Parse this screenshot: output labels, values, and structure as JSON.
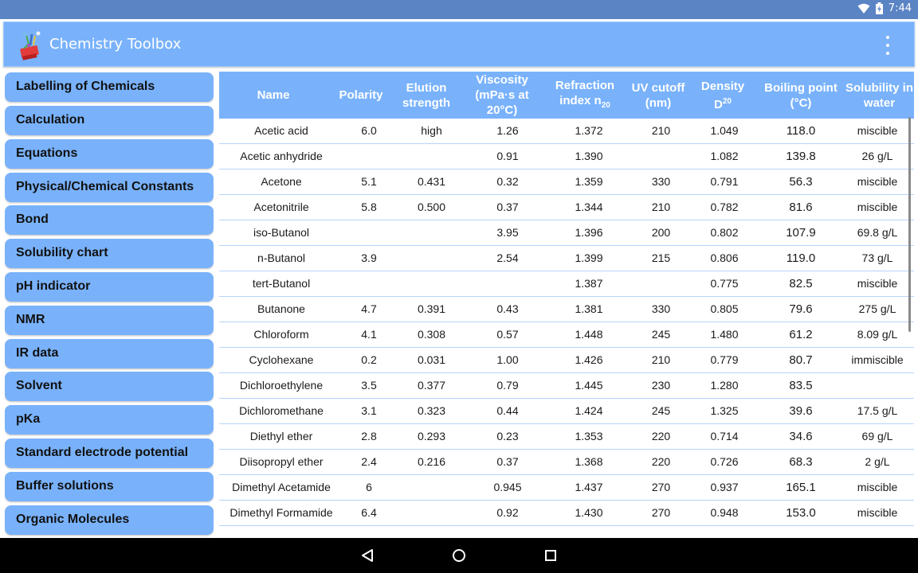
{
  "status_bar": {
    "time": "7:44",
    "icons": [
      "wifi-icon",
      "battery-charging-icon"
    ]
  },
  "app_bar": {
    "title": "Chemistry Toolbox",
    "menu_icon": "overflow-menu-icon",
    "logo_icon": "chemistry-flask-logo-icon"
  },
  "sidebar": {
    "items": [
      {
        "label": "Labelling of Chemicals"
      },
      {
        "label": "Calculation"
      },
      {
        "label": "Equations"
      },
      {
        "label": "Physical/Chemical Constants"
      },
      {
        "label": "Bond"
      },
      {
        "label": "Solubility chart"
      },
      {
        "label": "pH indicator"
      },
      {
        "label": "NMR"
      },
      {
        "label": "IR data"
      },
      {
        "label": "Solvent"
      },
      {
        "label": "pKa"
      },
      {
        "label": "Standard electrode potential"
      },
      {
        "label": "Buffer solutions"
      },
      {
        "label": "Organic Molecules"
      }
    ]
  },
  "table": {
    "headers": {
      "name": "Name",
      "polarity": "Polarity",
      "elution_1": "Elution",
      "elution_2": "strength",
      "viscosity_1": "Viscosity",
      "viscosity_2": "(mPa·s at",
      "viscosity_3": "20°C)",
      "refraction_1": "Refraction",
      "refraction_2": "index n",
      "refraction_sub": "20",
      "uv_1": "UV cutoff",
      "uv_2": "(nm)",
      "density_1": "Density",
      "density_2": "D",
      "density_sup": "20",
      "bp_1": "Boiling point",
      "bp_2": "(°C)",
      "sol_1": "Solubility in",
      "sol_2": "water"
    },
    "rows": [
      {
        "name": "Acetic acid",
        "polarity": "6.0",
        "elution": "high",
        "viscosity": "1.26",
        "refraction": "1.372",
        "uv": "210",
        "density": "1.049",
        "bp": "118.0",
        "solubility": "miscible"
      },
      {
        "name": "Acetic anhydride",
        "polarity": "",
        "elution": "",
        "viscosity": "0.91",
        "refraction": "1.390",
        "uv": "",
        "density": "1.082",
        "bp": "139.8",
        "solubility": "26 g/L"
      },
      {
        "name": "Acetone",
        "polarity": "5.1",
        "elution": "0.431",
        "viscosity": "0.32",
        "refraction": "1.359",
        "uv": "330",
        "density": "0.791",
        "bp": "56.3",
        "solubility": "miscible"
      },
      {
        "name": "Acetonitrile",
        "polarity": "5.8",
        "elution": "0.500",
        "viscosity": "0.37",
        "refraction": "1.344",
        "uv": "210",
        "density": "0.782",
        "bp": "81.6",
        "solubility": "miscible"
      },
      {
        "name": "iso-Butanol",
        "polarity": "",
        "elution": "",
        "viscosity": "3.95",
        "refraction": "1.396",
        "uv": "200",
        "density": "0.802",
        "bp": "107.9",
        "solubility": "69.8 g/L"
      },
      {
        "name": "n-Butanol",
        "polarity": "3.9",
        "elution": "",
        "viscosity": "2.54",
        "refraction": "1.399",
        "uv": "215",
        "density": "0.806",
        "bp": "119.0",
        "solubility": "73 g/L"
      },
      {
        "name": "tert-Butanol",
        "polarity": "",
        "elution": "",
        "viscosity": "",
        "refraction": "1.387",
        "uv": "",
        "density": "0.775",
        "bp": "82.5",
        "solubility": "miscible"
      },
      {
        "name": "Butanone",
        "polarity": "4.7",
        "elution": "0.391",
        "viscosity": "0.43",
        "refraction": "1.381",
        "uv": "330",
        "density": "0.805",
        "bp": "79.6",
        "solubility": "275 g/L"
      },
      {
        "name": "Chloroform",
        "polarity": "4.1",
        "elution": "0.308",
        "viscosity": "0.57",
        "refraction": "1.448",
        "uv": "245",
        "density": "1.480",
        "bp": "61.2",
        "solubility": "8.09 g/L"
      },
      {
        "name": "Cyclohexane",
        "polarity": "0.2",
        "elution": "0.031",
        "viscosity": "1.00",
        "refraction": "1.426",
        "uv": "210",
        "density": "0.779",
        "bp": "80.7",
        "solubility": "immiscible"
      },
      {
        "name": "Dichloroethylene",
        "polarity": "3.5",
        "elution": "0.377",
        "viscosity": "0.79",
        "refraction": "1.445",
        "uv": "230",
        "density": "1.280",
        "bp": "83.5",
        "solubility": ""
      },
      {
        "name": "Dichloromethane",
        "polarity": "3.1",
        "elution": "0.323",
        "viscosity": "0.44",
        "refraction": "1.424",
        "uv": "245",
        "density": "1.325",
        "bp": "39.6",
        "solubility": "17.5 g/L"
      },
      {
        "name": "Diethyl ether",
        "polarity": "2.8",
        "elution": "0.293",
        "viscosity": "0.23",
        "refraction": "1.353",
        "uv": "220",
        "density": "0.714",
        "bp": "34.6",
        "solubility": "69 g/L"
      },
      {
        "name": "Diisopropyl ether",
        "polarity": "2.4",
        "elution": "0.216",
        "viscosity": "0.37",
        "refraction": "1.368",
        "uv": "220",
        "density": "0.726",
        "bp": "68.3",
        "solubility": "2 g/L"
      },
      {
        "name": "Dimethyl Acetamide",
        "polarity": "6",
        "elution": "",
        "viscosity": "0.945",
        "refraction": "1.437",
        "uv": "270",
        "density": "0.937",
        "bp": "165.1",
        "solubility": "miscible"
      },
      {
        "name": "Dimethyl Formamide",
        "polarity": "6.4",
        "elution": "",
        "viscosity": "0.92",
        "refraction": "1.430",
        "uv": "270",
        "density": "0.948",
        "bp": "153.0",
        "solubility": "miscible"
      }
    ]
  },
  "nav_bar": {
    "icons": [
      "back-icon",
      "home-icon",
      "recents-icon"
    ]
  }
}
